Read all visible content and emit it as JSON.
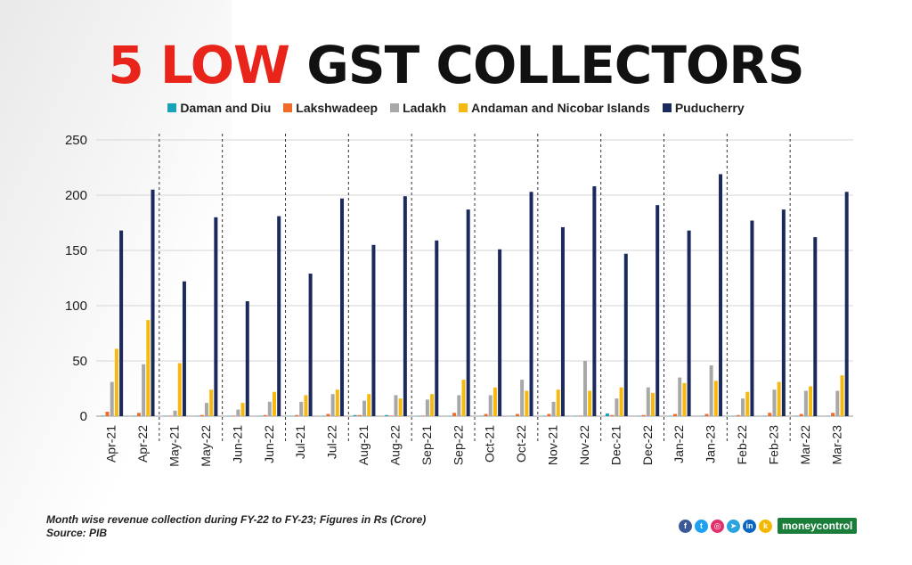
{
  "title": {
    "part1": "5 LOW",
    "part2": "GST COLLECTORS"
  },
  "footnote": {
    "line1": "Month wise revenue collection during FY-22 to FY-23; Figures in Rs (Crore)",
    "line2": "Source: PIB"
  },
  "brand": {
    "logo_text": "moneycontrol"
  },
  "social_icons": [
    {
      "name": "facebook-icon",
      "glyph": "f",
      "color": "#3b5998"
    },
    {
      "name": "twitter-icon",
      "glyph": "t",
      "color": "#1da1f2"
    },
    {
      "name": "instagram-icon",
      "glyph": "◎",
      "color": "#e1306c"
    },
    {
      "name": "telegram-icon",
      "glyph": "➤",
      "color": "#2aa3df"
    },
    {
      "name": "linkedin-icon",
      "glyph": "in",
      "color": "#0a66c2"
    },
    {
      "name": "koo-icon",
      "glyph": "k",
      "color": "#f5b800"
    }
  ],
  "chart_data": {
    "type": "bar",
    "title": "5 LOW GST COLLECTORS",
    "xlabel": "",
    "ylabel": "",
    "ylim": [
      0,
      250
    ],
    "yticks": [
      0,
      50,
      100,
      150,
      200,
      250
    ],
    "grid": true,
    "legend_position": "top",
    "categories": [
      "Apr-21",
      "Apr-22",
      "May-21",
      "May-22",
      "Jun-21",
      "Jun-22",
      "Jul-21",
      "Jul-22",
      "Aug-21",
      "Aug-22",
      "Sep-21",
      "Sep-22",
      "Oct-21",
      "Oct-22",
      "Nov-21",
      "Nov-22",
      "Dec-21",
      "Dec-22",
      "Jan-22",
      "Jan-23",
      "Feb-22",
      "Feb-23",
      "Mar-22",
      "Mar-23"
    ],
    "series": [
      {
        "name": "Daman and Diu",
        "color": "#1aa3b8",
        "values": [
          0.5,
          0.3,
          0.2,
          0.3,
          0.2,
          0.2,
          0.3,
          0.3,
          1,
          1,
          0.2,
          0.3,
          0.3,
          0.3,
          0.3,
          0.3,
          2.5,
          0.3,
          0.3,
          0.3,
          0.3,
          0.3,
          0.3,
          0.3
        ]
      },
      {
        "name": "Lakshwadeep",
        "color": "#f06a2a",
        "values": [
          4,
          3,
          0.5,
          1,
          0.5,
          1,
          1,
          2,
          1,
          0.5,
          0.5,
          3,
          2,
          2,
          2,
          0.5,
          1,
          1,
          2,
          2,
          1,
          3,
          2,
          3
        ]
      },
      {
        "name": "Ladakh",
        "color": "#a8a8a8",
        "values": [
          31,
          47,
          5,
          12,
          6,
          13,
          13,
          20,
          14,
          19,
          15,
          19,
          19,
          33,
          13,
          50,
          16,
          26,
          35,
          46,
          16,
          24,
          23,
          23
        ]
      },
      {
        "name": "Andaman and Nicobar Islands",
        "color": "#f6b90f",
        "values": [
          61,
          87,
          48,
          24,
          12,
          22,
          19,
          24,
          20,
          16,
          20,
          33,
          26,
          23,
          24,
          23,
          26,
          21,
          30,
          32,
          22,
          31,
          27,
          37
        ]
      },
      {
        "name": "Puducherry",
        "color": "#1b2a5c",
        "values": [
          168,
          205,
          122,
          180,
          104,
          181,
          129,
          197,
          155,
          199,
          159,
          187,
          151,
          203,
          171,
          208,
          147,
          191,
          168,
          219,
          177,
          187,
          162,
          203
        ]
      }
    ]
  }
}
